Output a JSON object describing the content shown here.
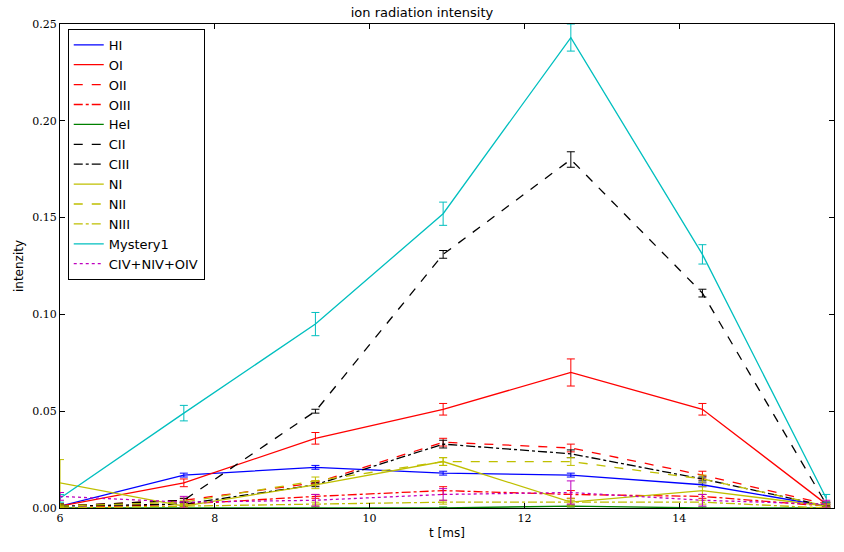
{
  "chart_data": {
    "type": "line",
    "title": "ion radiation intensity",
    "x_label": "t [ms]",
    "y_label": "intenzity",
    "x": [
      6.0,
      7.6,
      9.3,
      10.95,
      12.6,
      14.3,
      15.9
    ],
    "xlim": [
      6,
      16
    ],
    "xticks": [
      6,
      8,
      10,
      12,
      14
    ],
    "ylim": [
      0,
      0.25
    ],
    "yticks": [
      {
        "value": 0,
        "label": "0.00"
      },
      {
        "value": 0.05,
        "label": "0.05"
      },
      {
        "value": 0.1,
        "label": "0.10"
      },
      {
        "value": 0.15,
        "label": "0.15"
      },
      {
        "value": 0.2,
        "label": "0.20"
      },
      {
        "value": 0.25,
        "label": "0.25"
      }
    ],
    "grid": false,
    "legend": "upper left",
    "series": [
      {
        "name": "HI",
        "color": "#0000ff",
        "line_style": "solid",
        "values": [
          0.001,
          0.017,
          0.021,
          0.018,
          0.017,
          0.012,
          0.001
        ],
        "errors": [
          0.001,
          0.001,
          0.001,
          0.001,
          0.001,
          0.001,
          0.001
        ]
      },
      {
        "name": "OI",
        "color": "#ff0000",
        "line_style": "solid",
        "values": [
          0.001,
          0.013,
          0.036,
          0.051,
          0.07,
          0.051,
          0.002
        ],
        "errors": [
          0.001,
          0.002,
          0.003,
          0.003,
          0.007,
          0.003,
          0.001
        ]
      },
      {
        "name": "OII",
        "color": "#ff0000",
        "line_style": "dashed",
        "values": [
          0.001,
          0.004,
          0.013,
          0.034,
          0.031,
          0.017,
          0.002
        ],
        "errors": [
          0.001,
          0.001,
          0.001,
          0.002,
          0.002,
          0.002,
          0.001
        ]
      },
      {
        "name": "OIII",
        "color": "#ff0000",
        "line_style": "dashdot",
        "values": [
          0.0,
          0.002,
          0.006,
          0.009,
          0.007,
          0.006,
          0.001
        ],
        "errors": [
          0.001,
          0.001,
          0.001,
          0.002,
          0.002,
          0.001,
          0.001
        ]
      },
      {
        "name": "HeI",
        "color": "#008000",
        "line_style": "solid",
        "values": [
          0.0,
          0.0,
          0.0,
          0.0,
          0.001,
          0.0,
          0.0
        ],
        "errors": [
          0.0005,
          0.0005,
          0.0005,
          0.0005,
          0.0005,
          0.0005,
          0.0005
        ]
      },
      {
        "name": "CII",
        "color": "#000000",
        "line_style": "dashed",
        "values": [
          0.001,
          0.004,
          0.05,
          0.131,
          0.18,
          0.111,
          0.002
        ],
        "errors": [
          0.001,
          0.001,
          0.001,
          0.002,
          0.004,
          0.002,
          0.001
        ]
      },
      {
        "name": "CIII",
        "color": "#000000",
        "line_style": "dashdot",
        "values": [
          0.001,
          0.002,
          0.012,
          0.033,
          0.028,
          0.015,
          0.001
        ],
        "errors": [
          0.001,
          0.001,
          0.001,
          0.002,
          0.002,
          0.001,
          0.001
        ]
      },
      {
        "name": "NI",
        "color": "#bfbf00",
        "line_style": "solid",
        "values": [
          0.013,
          0.001,
          0.012,
          0.024,
          0.003,
          0.009,
          0.001
        ],
        "errors": [
          0.012,
          0.001,
          0.002,
          0.002,
          0.002,
          0.002,
          0.001
        ]
      },
      {
        "name": "NII",
        "color": "#bfbf00",
        "line_style": "dashed",
        "values": [
          0.001,
          0.003,
          0.014,
          0.024,
          0.024,
          0.015,
          0.001
        ],
        "errors": [
          0.001,
          0.001,
          0.002,
          0.002,
          0.002,
          0.002,
          0.001
        ]
      },
      {
        "name": "NIII",
        "color": "#bfbf00",
        "line_style": "dashdot",
        "values": [
          0.0,
          0.001,
          0.002,
          0.003,
          0.003,
          0.003,
          0.0
        ],
        "errors": [
          0.0005,
          0.001,
          0.001,
          0.001,
          0.001,
          0.001,
          0.0005
        ]
      },
      {
        "name": "Mystery1",
        "color": "#00bfbf",
        "line_style": "solid",
        "values": [
          0.005,
          0.049,
          0.095,
          0.152,
          0.243,
          0.131,
          0.005
        ],
        "errors": [
          0.002,
          0.004,
          0.006,
          0.006,
          0.007,
          0.005,
          0.002
        ]
      },
      {
        "name": "CIV+NIV+OIV",
        "color": "#bf00bf",
        "line_style": "dotted",
        "values": [
          0.006,
          0.003,
          0.004,
          0.007,
          0.008,
          0.004,
          0.002
        ],
        "errors": [
          0.002,
          0.003,
          0.003,
          0.003,
          0.006,
          0.003,
          0.002
        ]
      }
    ]
  }
}
